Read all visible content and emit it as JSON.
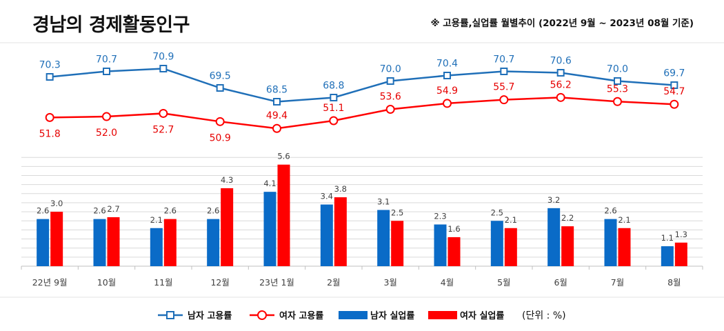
{
  "title": "경남의 경제활동인구",
  "subtitle": "※ 고용률,실업률 월별추이 (2022년 9월 ~ 2023년 08월 기준)",
  "unit_label": "(단위 : %)",
  "colors": {
    "male": "#1f6fb8",
    "female": "#ff0000",
    "male_bar": "#0a6bc7",
    "female_bar": "#ff0000",
    "grid": "#d9d9d9"
  },
  "chart_data": {
    "type": "bar+line",
    "categories": [
      "22년 9월",
      "10월",
      "11월",
      "12월",
      "23년 1월",
      "2월",
      "3월",
      "4월",
      "5월",
      "6월",
      "7월",
      "8월"
    ],
    "series": [
      {
        "name": "남자 고용률",
        "type": "line",
        "marker": "square",
        "color": "#1f6fb8",
        "values": [
          70.3,
          70.7,
          70.9,
          69.5,
          68.5,
          68.8,
          70.0,
          70.4,
          70.7,
          70.6,
          70.0,
          69.7
        ]
      },
      {
        "name": "여자 고용률",
        "type": "line",
        "marker": "circle",
        "color": "#ff0000",
        "values": [
          51.8,
          52.0,
          52.7,
          50.9,
          49.4,
          51.1,
          53.6,
          54.9,
          55.7,
          56.2,
          55.3,
          54.7
        ]
      },
      {
        "name": "남자 실업률",
        "type": "bar",
        "color": "#0a6bc7",
        "values": [
          2.6,
          2.6,
          2.1,
          2.6,
          4.1,
          3.4,
          3.1,
          2.3,
          2.5,
          3.2,
          2.6,
          1.1
        ]
      },
      {
        "name": "여자 실업률",
        "type": "bar",
        "color": "#ff0000",
        "values": [
          3.0,
          2.7,
          2.6,
          4.3,
          5.6,
          3.8,
          2.5,
          1.6,
          2.1,
          2.2,
          2.1,
          1.3
        ]
      }
    ],
    "bar_axis": {
      "ylim": [
        0,
        6
      ],
      "grid_step": 0.5
    },
    "grid": true,
    "legend": "bottom"
  }
}
